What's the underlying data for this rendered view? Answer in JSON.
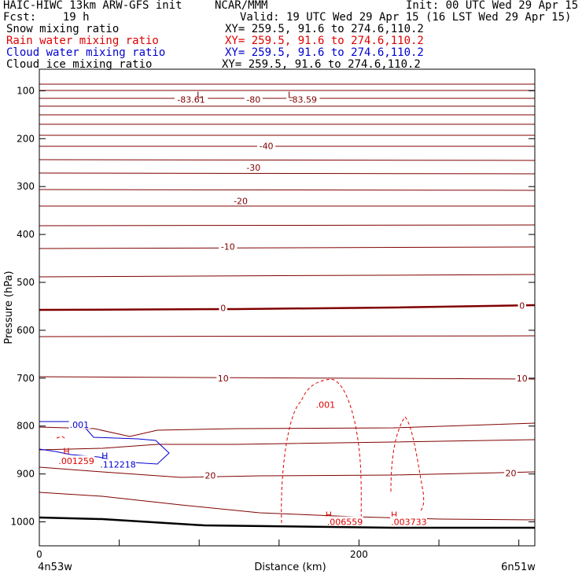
{
  "header": {
    "model": "HAIC-HIWC 13km ARW-GFS init",
    "org": "NCAR/MMM",
    "init": "Init: 00 UTC Wed 29 Apr 15",
    "fcst": "Fcst:    19 h",
    "valid": "Valid: 19 UTC Wed 29 Apr 15 (16 LST Wed 29 Apr 15)",
    "fields": [
      {
        "name": "Snow mixing ratio",
        "xy": "XY= 259.5, 91.6 to 274.6,110.2",
        "color": "#000000"
      },
      {
        "name": "Rain water mixing ratio",
        "xy": "XY= 259.5, 91.6 to 274.6,110.2",
        "color": "#e00000"
      },
      {
        "name": "Cloud water mixing ratio",
        "xy": "XY= 259.5, 91.6 to 274.6,110.2",
        "color": "#0000d0"
      },
      {
        "name": "Cloud ice mixing ratio",
        "xy": "XY= 259.5, 91.6 to 274.6,110.2",
        "color": "#000000"
      }
    ]
  },
  "chart_data": {
    "type": "cross-section contour",
    "xlabel": "Distance (km)",
    "ylabel": "Pressure (hPa)",
    "xlim": [
      0,
      310
    ],
    "ylim": [
      1050,
      55
    ],
    "x_ticks": [
      0,
      200
    ],
    "y_ticks": [
      100,
      200,
      300,
      400,
      500,
      600,
      700,
      800,
      900,
      1000
    ],
    "left_endpoint": "4n53w",
    "right_endpoint": "6n51w",
    "temperature_color": "#800000",
    "rain_color": "#e00000",
    "cloud_color": "#0000d0",
    "temperature_isotherms": [
      {
        "label": "-83.61",
        "x": 95,
        "p": 118
      },
      {
        "label": "-80",
        "x": 134,
        "p": 118
      },
      {
        "label": "-83.59",
        "x": 165,
        "p": 118
      },
      {
        "label": "-40",
        "x": 142,
        "p": 215
      },
      {
        "label": "-30",
        "x": 134,
        "p": 260
      },
      {
        "label": "-20",
        "x": 126,
        "p": 330
      },
      {
        "label": "-10",
        "x": 118,
        "p": 425
      },
      {
        "label": "0",
        "x": 115,
        "p": 553
      },
      {
        "label": "0",
        "x": 302,
        "p": 548
      },
      {
        "label": "10",
        "x": 115,
        "p": 700
      },
      {
        "label": "10",
        "x": 302,
        "p": 700
      },
      {
        "label": "20",
        "x": 107,
        "p": 903
      },
      {
        "label": "20",
        "x": 295,
        "p": 898
      }
    ],
    "extrema_markers": [
      {
        "kind": "L",
        "x": 100,
        "p": 108,
        "color": "#800000"
      },
      {
        "kind": "L",
        "x": 157,
        "p": 108,
        "color": "#800000"
      },
      {
        "kind": "H",
        "x": 17,
        "p": 852,
        "color": "#e00000"
      },
      {
        "kind": "H",
        "x": 41,
        "p": 862,
        "color": "#0000d0"
      },
      {
        "kind": "H",
        "x": 181,
        "p": 985,
        "color": "#e00000"
      },
      {
        "kind": "H",
        "x": 222,
        "p": 985,
        "color": "#e00000"
      }
    ],
    "rain_labels": [
      {
        "text": ".001",
        "x": 173,
        "p": 755
      },
      {
        "text": ".001259",
        "x": 12,
        "p": 873
      },
      {
        "text": ".006559",
        "x": 180,
        "p": 1000
      },
      {
        "text": ".003733",
        "x": 220,
        "p": 1000
      }
    ],
    "cloud_labels": [
      {
        "text": ".001",
        "x": 19,
        "p": 797
      },
      {
        "text": ".112218",
        "x": 38,
        "p": 880
      }
    ]
  }
}
